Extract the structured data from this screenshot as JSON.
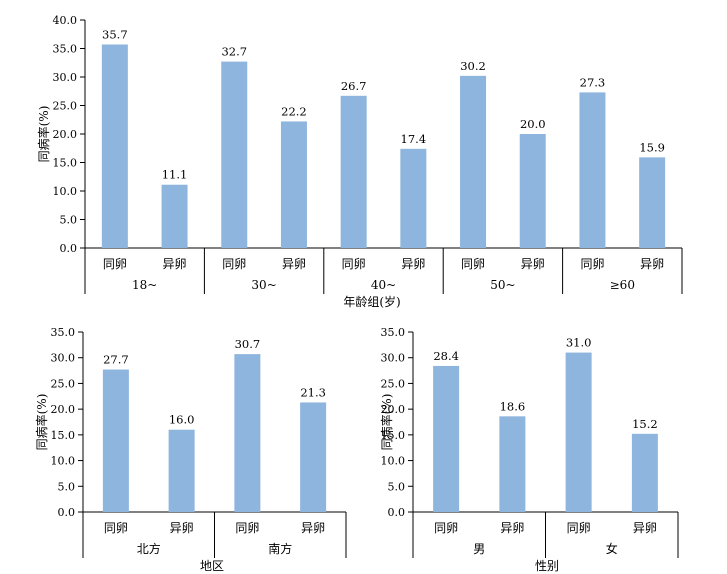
{
  "chart_data": [
    {
      "type": "bar",
      "ylabel": "同病率(%)",
      "xlabel": "年龄组(岁)",
      "ylim": [
        0,
        40
      ],
      "yticks": [
        "0.0",
        "5.0",
        "10.0",
        "15.0",
        "20.0",
        "25.0",
        "30.0",
        "35.0",
        "40.0"
      ],
      "grid": false,
      "groups": [
        "18~",
        "30~",
        "40~",
        "50~",
        "≥60"
      ],
      "categories": [
        "同卵",
        "异卵"
      ],
      "values": [
        [
          35.7,
          11.1
        ],
        [
          32.7,
          22.2
        ],
        [
          26.7,
          17.4
        ],
        [
          30.2,
          20.0
        ],
        [
          27.3,
          15.9
        ]
      ],
      "value_labels": [
        [
          "35.7",
          "11.1"
        ],
        [
          "32.7",
          "22.2"
        ],
        [
          "26.7",
          "17.4"
        ],
        [
          "30.2",
          "20.0"
        ],
        [
          "27.3",
          "15.9"
        ]
      ],
      "bar_color": "#8db5de"
    },
    {
      "type": "bar",
      "ylabel": "同病率(%)",
      "xlabel": "地区",
      "ylim": [
        0,
        35
      ],
      "yticks": [
        "0.0",
        "5.0",
        "10.0",
        "15.0",
        "20.0",
        "25.0",
        "30.0",
        "35.0"
      ],
      "grid": false,
      "groups": [
        "北方",
        "南方"
      ],
      "categories": [
        "同卵",
        "异卵"
      ],
      "values": [
        [
          27.7,
          16.0
        ],
        [
          30.7,
          21.3
        ]
      ],
      "value_labels": [
        [
          "27.7",
          "16.0"
        ],
        [
          "30.7",
          "21.3"
        ]
      ],
      "bar_color": "#8db5de"
    },
    {
      "type": "bar",
      "ylabel": "同病率(%)",
      "xlabel": "性别",
      "ylim": [
        0,
        35
      ],
      "yticks": [
        "0.0",
        "5.0",
        "10.0",
        "15.0",
        "20.0",
        "25.0",
        "30.0",
        "35.0"
      ],
      "grid": false,
      "groups": [
        "男",
        "女"
      ],
      "categories": [
        "同卵",
        "异卵"
      ],
      "values": [
        [
          28.4,
          18.6
        ],
        [
          31.0,
          15.2
        ]
      ],
      "value_labels": [
        [
          "28.4",
          "18.6"
        ],
        [
          "31.0",
          "15.2"
        ]
      ],
      "bar_color": "#8db5de"
    }
  ]
}
